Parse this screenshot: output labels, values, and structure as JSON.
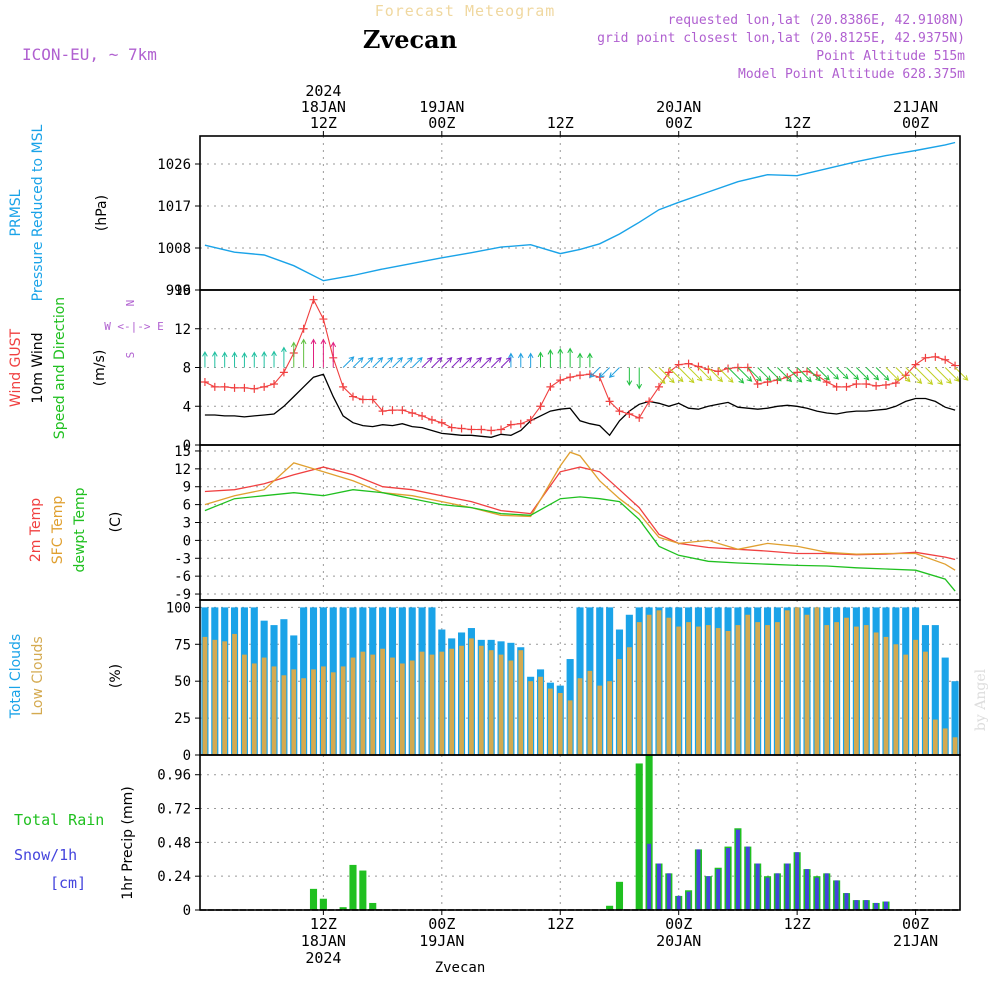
{
  "header": {
    "title": "Zvecan",
    "subtitle": "Forecast Meteogram",
    "model": "ICON-EU, ~ 7km",
    "requested": "requested lon,lat (20.8386E, 42.9108N)",
    "gridpoint": "grid point closest lon,lat (20.8125E, 42.9375N)",
    "point_alt": "Point Altitude 515m",
    "model_alt": "Model Point Altitude 628.375m",
    "footer": "Zvecan",
    "credit": "by Angel"
  },
  "colors": {
    "pressure": "#1aa3e8",
    "gust": "#f04040",
    "wind": "#000000",
    "t2m": "#f04040",
    "sfc": "#e0a030",
    "dewpt": "#20c020",
    "total_clouds": "#1aa3e8",
    "low_clouds": "#d4aa50",
    "rain": "#20c020",
    "snow": "#4444dd",
    "purple": "#b060d0"
  },
  "time_axis": {
    "top": [
      {
        "t": 12,
        "lines": [
          "2024",
          "18JAN",
          "12Z"
        ]
      },
      {
        "t": 24,
        "lines": [
          "19JAN",
          "00Z"
        ]
      },
      {
        "t": 36,
        "lines": [
          "12Z"
        ]
      },
      {
        "t": 48,
        "lines": [
          "20JAN",
          "00Z"
        ]
      },
      {
        "t": 60,
        "lines": [
          "12Z"
        ]
      },
      {
        "t": 72,
        "lines": [
          "21JAN",
          "00Z"
        ]
      }
    ],
    "bottom": [
      {
        "t": 12,
        "lines": [
          "12Z",
          "18JAN",
          "2024"
        ]
      },
      {
        "t": 24,
        "lines": [
          "00Z",
          "19JAN"
        ]
      },
      {
        "t": 36,
        "lines": [
          "12Z"
        ]
      },
      {
        "t": 48,
        "lines": [
          "00Z",
          "20JAN"
        ]
      },
      {
        "t": 60,
        "lines": [
          "12Z"
        ]
      },
      {
        "t": 72,
        "lines": [
          "00Z",
          "21JAN"
        ]
      }
    ]
  },
  "chart_data": [
    {
      "id": "pressure",
      "type": "line",
      "ylabel_lines": [
        {
          "text": "PRMSL",
          "color": "#1aa3e8"
        },
        {
          "text": "Pressure Reduced to MSL",
          "color": "#1aa3e8"
        },
        {
          "text": "(hPa)",
          "color": "#000000"
        }
      ],
      "yticks": [
        999,
        1008,
        1017,
        1026
      ],
      "ylim": [
        999,
        1032
      ],
      "series": [
        {
          "x": [
            0,
            3,
            6,
            9,
            12,
            15,
            18,
            21,
            24,
            27,
            30,
            33,
            36,
            38,
            40,
            42,
            44,
            46,
            48,
            51,
            54,
            57,
            60,
            63,
            66,
            69,
            72,
            75,
            76
          ],
          "values": [
            1008.6,
            1007.1,
            1006.5,
            1004.2,
            1001.0,
            1002.1,
            1003.5,
            1004.7,
            1005.9,
            1007.0,
            1008.2,
            1008.7,
            1006.8,
            1007.7,
            1008.9,
            1011.0,
            1013.5,
            1016.2,
            1017.8,
            1020.0,
            1022.2,
            1023.7,
            1023.5,
            1025.0,
            1026.5,
            1027.8,
            1028.9,
            1030.1,
            1030.6
          ]
        }
      ]
    },
    {
      "id": "wind",
      "type": "line",
      "ylabel_lines": [
        {
          "text": "Wind GUST",
          "color": "#f04040"
        },
        {
          "text": "10m Wind",
          "color": "#000000"
        },
        {
          "text": "Speed and Direction",
          "color": "#20c020"
        },
        {
          "text": "(m/s)",
          "color": "#000000"
        }
      ],
      "compass": [
        "N",
        "W <-|-> E",
        "S"
      ],
      "yticks": [
        0,
        4,
        8,
        12,
        16
      ],
      "ylim": [
        0,
        16
      ],
      "x": [
        0,
        1,
        2,
        3,
        4,
        5,
        6,
        7,
        8,
        9,
        10,
        11,
        12,
        13,
        14,
        15,
        16,
        17,
        18,
        19,
        20,
        21,
        22,
        23,
        24,
        25,
        26,
        27,
        28,
        29,
        30,
        31,
        32,
        33,
        34,
        35,
        36,
        37,
        38,
        39,
        40,
        41,
        42,
        43,
        44,
        45,
        46,
        47,
        48,
        49,
        50,
        51,
        52,
        53,
        54,
        55,
        56,
        57,
        58,
        59,
        60,
        61,
        62,
        63,
        64,
        65,
        66,
        67,
        68,
        69,
        70,
        71,
        72,
        73,
        74,
        75,
        76
      ],
      "gust": [
        6.5,
        6.0,
        6.0,
        5.9,
        5.9,
        5.8,
        6.0,
        6.3,
        7.5,
        9.5,
        12.0,
        15.0,
        13.0,
        9.0,
        6.0,
        5.0,
        4.7,
        4.7,
        3.5,
        3.6,
        3.6,
        3.3,
        3.0,
        2.6,
        2.3,
        1.8,
        1.7,
        1.6,
        1.6,
        1.5,
        1.6,
        2.1,
        2.2,
        2.6,
        4.0,
        6.0,
        6.7,
        7.0,
        7.2,
        7.3,
        7.0,
        4.5,
        3.5,
        3.2,
        2.8,
        4.5,
        6.0,
        7.5,
        8.3,
        8.4,
        8.1,
        7.8,
        7.6,
        7.9,
        8.0,
        8.0,
        6.3,
        6.5,
        6.7,
        7.0,
        7.5,
        7.6,
        7.2,
        6.5,
        6.0,
        6.0,
        6.3,
        6.3,
        6.1,
        6.2,
        6.4,
        7.2,
        8.3,
        9.0,
        9.1,
        8.8,
        8.2
      ],
      "wind": [
        3.1,
        3.1,
        3.0,
        3.0,
        2.9,
        3.0,
        3.1,
        3.2,
        4.0,
        5.0,
        6.0,
        7.0,
        7.3,
        5.0,
        3.0,
        2.3,
        2.0,
        1.9,
        2.1,
        2.0,
        2.2,
        1.9,
        1.8,
        1.5,
        1.2,
        1.1,
        1.0,
        1.0,
        0.9,
        0.8,
        1.1,
        1.0,
        1.5,
        2.5,
        3.0,
        3.5,
        3.7,
        3.8,
        2.5,
        2.2,
        2.0,
        1.0,
        2.5,
        3.5,
        4.2,
        4.5,
        4.3,
        4.0,
        4.3,
        3.8,
        3.7,
        4.0,
        4.2,
        4.4,
        3.9,
        3.8,
        3.7,
        3.8,
        4.0,
        4.1,
        4.0,
        3.8,
        3.5,
        3.3,
        3.2,
        3.4,
        3.5,
        3.5,
        3.6,
        3.7,
        4.0,
        4.5,
        4.8,
        4.8,
        4.5,
        3.9,
        3.6
      ],
      "direction_arrows": [
        {
          "t": 0,
          "dir": "N",
          "color": "#20c0a0"
        },
        {
          "t": 9,
          "dir": "N",
          "color": "#60c040"
        },
        {
          "t": 11,
          "dir": "N",
          "color": "#e02080"
        },
        {
          "t": 14,
          "dir": "NE",
          "color": "#20a0e0"
        },
        {
          "t": 22,
          "dir": "NE",
          "color": "#8020c0"
        },
        {
          "t": 31,
          "dir": "N",
          "color": "#20a0e0"
        },
        {
          "t": 34,
          "dir": "N",
          "color": "#20c040"
        },
        {
          "t": 40,
          "dir": "SW",
          "color": "#20a0e0"
        },
        {
          "t": 43,
          "dir": "S",
          "color": "#20c040"
        },
        {
          "t": 45,
          "dir": "SE",
          "color": "#c0d020"
        },
        {
          "t": 53,
          "dir": "SE",
          "color": "#20c040"
        },
        {
          "t": 69,
          "dir": "SE",
          "color": "#c0d020"
        }
      ]
    },
    {
      "id": "temperature",
      "type": "line",
      "ylabel_lines": [
        {
          "text": "2m Temp",
          "color": "#f04040"
        },
        {
          "text": "SFC Temp",
          "color": "#e0a030"
        },
        {
          "text": "dewpt Temp",
          "color": "#20c020"
        },
        {
          "text": "(C)",
          "color": "#000000"
        }
      ],
      "yticks": [
        -9,
        -6,
        -3,
        0,
        3,
        6,
        9,
        12,
        15
      ],
      "ylim": [
        -10,
        16
      ],
      "series": [
        {
          "name": "2m Temp",
          "x": [
            0,
            3,
            6,
            9,
            12,
            15,
            18,
            21,
            24,
            27,
            30,
            33,
            36,
            38,
            40,
            42,
            44,
            46,
            48,
            51,
            54,
            57,
            60,
            63,
            66,
            69,
            72,
            75,
            76
          ],
          "values": [
            8.2,
            8.5,
            9.5,
            11.0,
            12.3,
            11.0,
            9.0,
            8.5,
            7.5,
            6.5,
            5.0,
            4.5,
            11.5,
            12.3,
            11.5,
            8.5,
            5.5,
            1.0,
            -0.5,
            -1.2,
            -1.5,
            -1.8,
            -2.2,
            -2.2,
            -2.4,
            -2.3,
            -2.0,
            -2.8,
            -3.2
          ]
        },
        {
          "name": "SFC Temp",
          "x": [
            0,
            3,
            6,
            9,
            12,
            15,
            18,
            21,
            24,
            27,
            30,
            33,
            36,
            37,
            38,
            40,
            42,
            44,
            46,
            48,
            51,
            54,
            57,
            60,
            63,
            66,
            69,
            72,
            75,
            76
          ],
          "values": [
            6.0,
            7.5,
            8.5,
            13.0,
            11.5,
            10.0,
            8.0,
            7.5,
            6.5,
            5.5,
            4.2,
            4.0,
            12.5,
            14.8,
            14.2,
            10.0,
            7.0,
            4.5,
            0.5,
            -0.5,
            0.0,
            -1.5,
            -0.5,
            -1.0,
            -2.0,
            -2.3,
            -2.2,
            -2.2,
            -4.0,
            -5.0
          ]
        },
        {
          "name": "dewpt Temp",
          "x": [
            0,
            3,
            6,
            9,
            12,
            15,
            18,
            21,
            24,
            27,
            30,
            33,
            36,
            38,
            40,
            42,
            44,
            46,
            48,
            51,
            54,
            57,
            60,
            63,
            66,
            69,
            72,
            75,
            76
          ],
          "values": [
            5.0,
            7.0,
            7.5,
            8.0,
            7.5,
            8.5,
            8.0,
            7.0,
            6.0,
            5.5,
            4.5,
            4.2,
            7.0,
            7.3,
            7.0,
            6.5,
            3.5,
            -1.0,
            -2.5,
            -3.5,
            -3.8,
            -4.0,
            -4.2,
            -4.3,
            -4.6,
            -4.8,
            -5.0,
            -6.5,
            -8.5
          ]
        }
      ]
    },
    {
      "id": "clouds",
      "type": "bar",
      "ylabel_lines": [
        {
          "text": "Total Clouds",
          "color": "#1aa3e8"
        },
        {
          "text": "Low Clouds",
          "color": "#d4aa50"
        },
        {
          "text": "(%)",
          "color": "#000000"
        }
      ],
      "yticks": [
        0,
        25,
        50,
        75,
        100
      ],
      "ylim": [
        0,
        105
      ],
      "x": [
        0,
        1,
        2,
        3,
        4,
        5,
        6,
        7,
        8,
        9,
        10,
        11,
        12,
        13,
        14,
        15,
        16,
        17,
        18,
        19,
        20,
        21,
        22,
        23,
        24,
        25,
        26,
        27,
        28,
        29,
        30,
        31,
        32,
        33,
        34,
        35,
        36,
        37,
        38,
        39,
        40,
        41,
        42,
        43,
        44,
        45,
        46,
        47,
        48,
        49,
        50,
        51,
        52,
        53,
        54,
        55,
        56,
        57,
        58,
        59,
        60,
        61,
        62,
        63,
        64,
        65,
        66,
        67,
        68,
        69,
        70,
        71,
        72,
        73,
        74,
        75,
        76
      ],
      "total": [
        100,
        100,
        100,
        100,
        100,
        100,
        91,
        88,
        92,
        81,
        100,
        100,
        100,
        100,
        100,
        100,
        100,
        100,
        100,
        100,
        100,
        100,
        100,
        100,
        85,
        79,
        83,
        86,
        78,
        78,
        77,
        76,
        73,
        53,
        58,
        49,
        47,
        65,
        100,
        100,
        100,
        100,
        85,
        95,
        100,
        100,
        100,
        100,
        100,
        100,
        100,
        100,
        100,
        100,
        100,
        100,
        100,
        100,
        100,
        100,
        100,
        100,
        100,
        100,
        100,
        100,
        100,
        100,
        100,
        100,
        100,
        100,
        100,
        88,
        88,
        66,
        50
      ],
      "low": [
        80,
        78,
        77,
        82,
        68,
        62,
        66,
        60,
        54,
        58,
        52,
        58,
        60,
        56,
        60,
        66,
        70,
        68,
        72,
        66,
        62,
        64,
        70,
        68,
        70,
        72,
        74,
        79,
        74,
        71,
        68,
        64,
        71,
        50,
        53,
        45,
        42,
        37,
        52,
        57,
        47,
        50,
        65,
        73,
        90,
        95,
        98,
        93,
        87,
        90,
        87,
        88,
        86,
        84,
        88,
        95,
        90,
        88,
        90,
        98,
        100,
        95,
        100,
        88,
        90,
        93,
        87,
        88,
        83,
        80,
        75,
        68,
        78,
        70,
        24,
        18,
        12
      ]
    },
    {
      "id": "precip",
      "type": "bar",
      "ylabel_lines": [
        {
          "text": "1hr Precip (mm)",
          "color": "#000000"
        }
      ],
      "legend": [
        {
          "text": "Total  Rain",
          "color": "#20c020"
        },
        {
          "text": "Snow/1h",
          "color": "#4444dd"
        },
        {
          "text": "[cm]",
          "color": "#4444dd"
        }
      ],
      "yticks": [
        0,
        0.24,
        0.48,
        0.72,
        0.96
      ],
      "ylim": [
        0,
        1.1
      ],
      "x": [
        11,
        12,
        13,
        14,
        15,
        16,
        17,
        18,
        41,
        42,
        43,
        44,
        45,
        46,
        47,
        48,
        49,
        50,
        51,
        52,
        53,
        54,
        55,
        56,
        57,
        58,
        59,
        60,
        61,
        62,
        63,
        64,
        65,
        66,
        67,
        68,
        69,
        70,
        71
      ],
      "rain": [
        0.15,
        0.08,
        0,
        0.02,
        0.32,
        0.28,
        0.05,
        0,
        0.03,
        0.2,
        0,
        1.04,
        1.1,
        0.33,
        0.26,
        0.1,
        0.14,
        0.43,
        0.24,
        0.3,
        0.45,
        0.58,
        0.45,
        0.33,
        0.24,
        0.26,
        0.33,
        0.41,
        0.29,
        0.24,
        0.26,
        0.21,
        0.12,
        0.07,
        0.07,
        0.05,
        0.06,
        0,
        0
      ],
      "snow": [
        0,
        0,
        0,
        0,
        0,
        0,
        0,
        0,
        0,
        0,
        0,
        0,
        0.47,
        0.33,
        0.26,
        0.1,
        0.13,
        0.43,
        0.24,
        0.29,
        0.44,
        0.57,
        0.45,
        0.33,
        0.23,
        0.26,
        0.33,
        0.41,
        0.29,
        0.23,
        0.26,
        0.21,
        0.12,
        0.07,
        0.07,
        0.05,
        0.06,
        0,
        0
      ]
    }
  ]
}
